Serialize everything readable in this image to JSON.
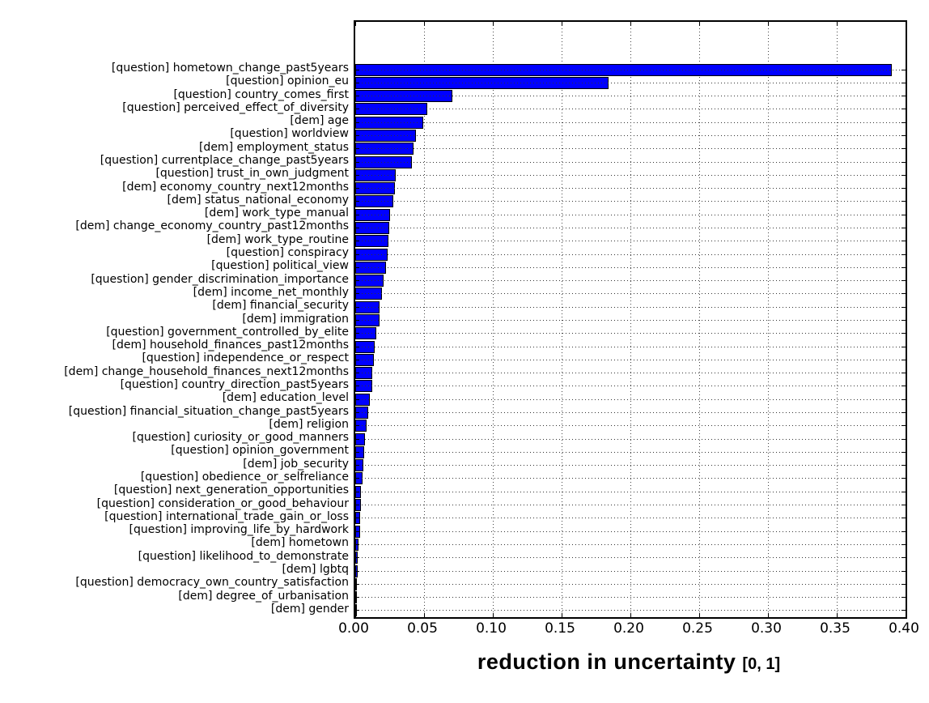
{
  "chart_data": {
    "type": "bar",
    "orientation": "horizontal",
    "title": "",
    "xlabel": "reduction in uncertainty",
    "xlabel_suffix": "[0, 1]",
    "ylabel": "",
    "xlim": [
      0,
      0.4
    ],
    "xtick_labels": [
      "0.00",
      "0.05",
      "0.10",
      "0.15",
      "0.20",
      "0.25",
      "0.30",
      "0.35",
      "0.40"
    ],
    "grid": "dotted-both-axes",
    "legend": "none",
    "bar_color": "#0000ff",
    "bar_edge_color": "#000000",
    "categories": [
      "[question] hometown_change_past5years",
      "[question] opinion_eu",
      "[question] country_comes_first",
      "[question] perceived_effect_of_diversity",
      "[dem] age",
      "[question] worldview",
      "[dem] employment_status",
      "[question] currentplace_change_past5years",
      "[question] trust_in_own_judgment",
      "[dem] economy_country_next12months",
      "[dem] status_national_economy",
      "[dem] work_type_manual",
      "[dem] change_economy_country_past12months",
      "[dem] work_type_routine",
      "[question] conspiracy",
      "[question] political_view",
      "[question] gender_discrimination_importance",
      "[dem] income_net_monthly",
      "[dem] financial_security",
      "[dem] immigration",
      "[question] government_controlled_by_elite",
      "[dem] household_finances_past12months",
      "[question] independence_or_respect",
      "[dem] change_household_finances_next12months",
      "[question] country_direction_past5years",
      "[dem] education_level",
      "[question] financial_situation_change_past5years",
      "[dem] religion",
      "[question] curiosity_or_good_manners",
      "[question] opinion_government",
      "[dem] job_security",
      "[question] obedience_or_selfreliance",
      "[question] next_generation_opportunities",
      "[question] consideration_or_good_behaviour",
      "[question] international_trade_gain_or_loss",
      "[question] improving_life_by_hardwork",
      "[dem] hometown",
      "[question] likelihood_to_demonstrate",
      "[dem] lgbtq",
      "[question] democracy_own_country_satisfaction",
      "[dem] degree_of_urbanisation",
      "[dem] gender"
    ],
    "values": [
      0.39,
      0.184,
      0.0705,
      0.0525,
      0.0495,
      0.044,
      0.0421,
      0.0414,
      0.0294,
      0.0286,
      0.0278,
      0.025,
      0.0247,
      0.0242,
      0.0238,
      0.0221,
      0.0206,
      0.0193,
      0.0176,
      0.0174,
      0.0152,
      0.0141,
      0.0135,
      0.0124,
      0.0122,
      0.0107,
      0.0094,
      0.0082,
      0.0072,
      0.0062,
      0.0056,
      0.0052,
      0.0042,
      0.004,
      0.0038,
      0.0036,
      0.0026,
      0.0018,
      0.0016,
      0.001,
      0.0005,
      0.0002
    ]
  }
}
